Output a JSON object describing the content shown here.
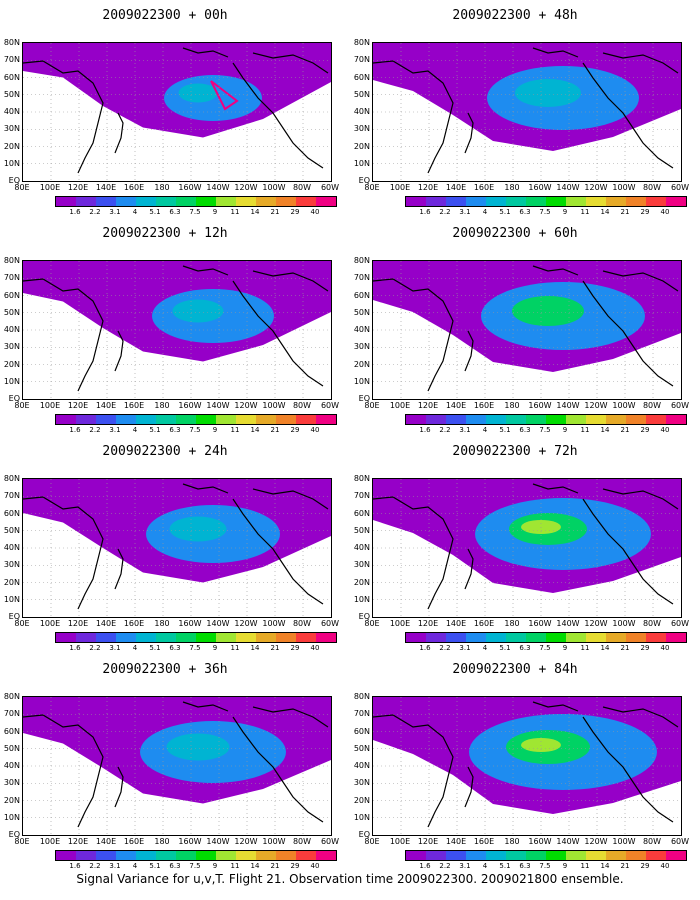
{
  "panels": [
    {
      "title": "2009022300 + 00h",
      "lead": "00h",
      "intensity": 0.15
    },
    {
      "title": "2009022300 + 48h",
      "lead": "48h",
      "intensity": 0.6
    },
    {
      "title": "2009022300 + 12h",
      "lead": "12h",
      "intensity": 0.35
    },
    {
      "title": "2009022300 + 60h",
      "lead": "60h",
      "intensity": 0.7
    },
    {
      "title": "2009022300 + 24h",
      "lead": "24h",
      "intensity": 0.45
    },
    {
      "title": "2009022300 + 72h",
      "lead": "72h",
      "intensity": 0.8
    },
    {
      "title": "2009022300 + 36h",
      "lead": "36h",
      "intensity": 0.55
    },
    {
      "title": "2009022300 + 84h",
      "lead": "84h",
      "intensity": 0.9
    }
  ],
  "lat_labels": [
    "80N",
    "70N",
    "60N",
    "50N",
    "40N",
    "30N",
    "20N",
    "10N",
    "EQ"
  ],
  "lon_labels": [
    "80E",
    "100E",
    "120E",
    "140E",
    "160E",
    "180",
    "160W",
    "140W",
    "120W",
    "100W",
    "80W",
    "60W"
  ],
  "colorbar": {
    "labels": [
      "1.6",
      "2.2",
      "3.1",
      "4",
      "5.1",
      "6.3",
      "7.5",
      "9",
      "11",
      "14",
      "21",
      "29",
      "40"
    ],
    "colors": [
      "#9600c8",
      "#6e28dc",
      "#3c50f0",
      "#1e8cf0",
      "#00b4d2",
      "#00c8a0",
      "#00d264",
      "#00dc00",
      "#a0e632",
      "#e6dc32",
      "#e6aa28",
      "#f08228",
      "#fa3c3c",
      "#f00082"
    ]
  },
  "caption": "Signal Variance for u,v,T. Flight 21. Observation time 2009022300. 2009021800 ensemble."
}
